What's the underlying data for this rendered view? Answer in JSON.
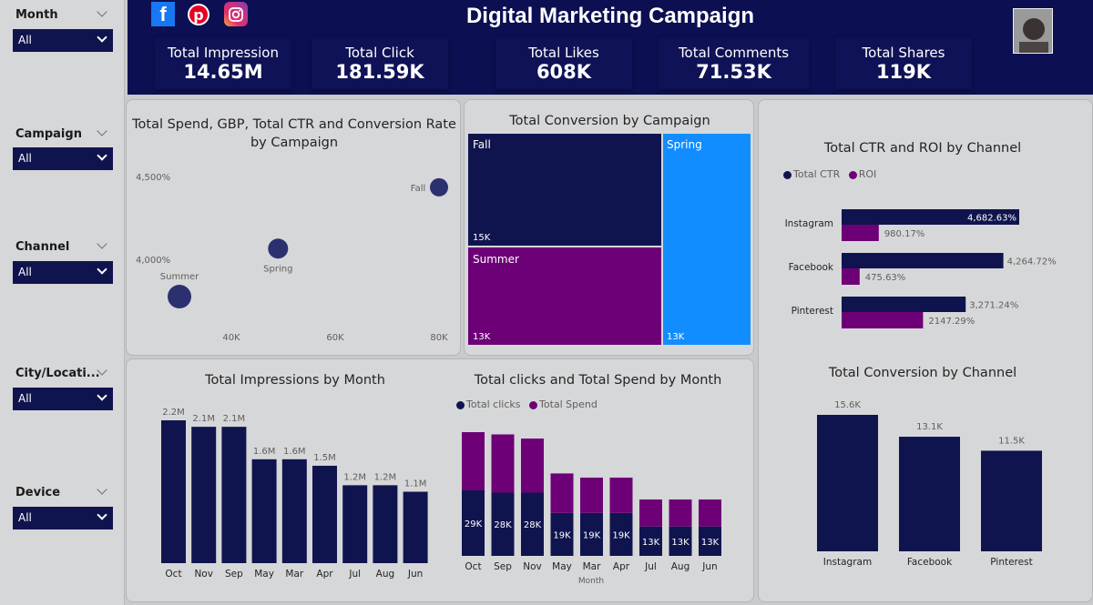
{
  "header": {
    "title": "Digital Marketing Campaign",
    "social_icons": [
      "facebook-icon",
      "pinterest-icon",
      "instagram-icon"
    ],
    "kpis": [
      {
        "label": "Total Impression",
        "value": "14.65M"
      },
      {
        "label": "Total Click",
        "value": "181.59K"
      },
      {
        "label": "Total Likes",
        "value": "608K"
      },
      {
        "label": "Total Comments",
        "value": "71.53K"
      },
      {
        "label": "Total Shares",
        "value": "119K"
      }
    ]
  },
  "slicers": [
    {
      "title": "Month",
      "value": "All"
    },
    {
      "title": "Campaign",
      "value": "All"
    },
    {
      "title": "Channel",
      "value": "All"
    },
    {
      "title": "City/Locati...",
      "value": "All"
    },
    {
      "title": "Device",
      "value": "All"
    }
  ],
  "colors": {
    "navy": "#10144e",
    "purple": "#6d0077",
    "blue": "#118dff",
    "header": "#0d0f53"
  },
  "chart_data": [
    {
      "id": "spend-ctr-conv",
      "type": "scatter",
      "title": "Total Spend, GBP, Total CTR and Conversion Rate by Campaign",
      "x_ticks": [
        "40K",
        "60K",
        "80K"
      ],
      "y_ticks": [
        "4,500%",
        "4,000%"
      ],
      "points": [
        {
          "label": "Fall",
          "x": 80000,
          "y": 4440
        },
        {
          "label": "Spring",
          "x": 49000,
          "y": 4070
        },
        {
          "label": "Summer",
          "x": 30000,
          "y": 3780
        }
      ]
    },
    {
      "id": "conversion-by-campaign",
      "type": "treemap",
      "title": "Total Conversion by Campaign",
      "items": [
        {
          "label": "Fall",
          "value": "15K"
        },
        {
          "label": "Summer",
          "value": "13K"
        },
        {
          "label": "Spring",
          "value": "13K"
        }
      ]
    },
    {
      "id": "ctr-roi-by-channel",
      "type": "bar",
      "title": "Total CTR and ROI by Channel",
      "legend": [
        "Total CTR",
        "ROI"
      ],
      "categories": [
        "Instagram",
        "Facebook",
        "Pinterest"
      ],
      "series": [
        {
          "name": "Total CTR",
          "values": [
            4682.63,
            4264.72,
            3271.24
          ],
          "labels": [
            "4,682.63%",
            "4,264.72%",
            "3,271.24%"
          ]
        },
        {
          "name": "ROI",
          "values": [
            980.17,
            475.63,
            2147.29
          ],
          "labels": [
            "980.17%",
            "475.63%",
            "2147.29%"
          ]
        }
      ]
    },
    {
      "id": "impressions-by-month",
      "type": "bar",
      "title": "Total Impressions by Month",
      "categories": [
        "Oct",
        "Nov",
        "Sep",
        "May",
        "Mar",
        "Apr",
        "Jul",
        "Aug",
        "Jun"
      ],
      "values": [
        2.2,
        2.1,
        2.1,
        1.6,
        1.6,
        1.5,
        1.2,
        1.2,
        1.1
      ],
      "labels": [
        "2.2M",
        "2.1M",
        "2.1M",
        "1.6M",
        "1.6M",
        "1.5M",
        "1.2M",
        "1.2M",
        "1.1M"
      ]
    },
    {
      "id": "clicks-spend-by-month",
      "type": "bar",
      "title": "Total clicks and Total Spend by Month",
      "legend": [
        "Total clicks",
        "Total Spend"
      ],
      "xlabel": "Month",
      "categories": [
        "Oct",
        "Sep",
        "Nov",
        "May",
        "Mar",
        "Apr",
        "Jul",
        "Aug",
        "Jun"
      ],
      "series": [
        {
          "name": "Total clicks",
          "values": [
            29,
            28,
            28,
            19,
            19,
            19,
            13,
            13,
            13
          ],
          "labels": [
            "29K",
            "28K",
            "28K",
            "19K",
            "19K",
            "19K",
            "13K",
            "13K",
            "13K"
          ]
        },
        {
          "name": "Total Spend",
          "values": [
            28,
            28,
            26,
            19,
            17,
            17,
            13,
            13,
            13
          ]
        }
      ]
    },
    {
      "id": "conversion-by-channel",
      "type": "bar",
      "title": "Total Conversion by Channel",
      "categories": [
        "Instagram",
        "Facebook",
        "Pinterest"
      ],
      "values": [
        15.6,
        13.1,
        11.5
      ],
      "labels": [
        "15.6K",
        "13.1K",
        "11.5K"
      ]
    }
  ]
}
